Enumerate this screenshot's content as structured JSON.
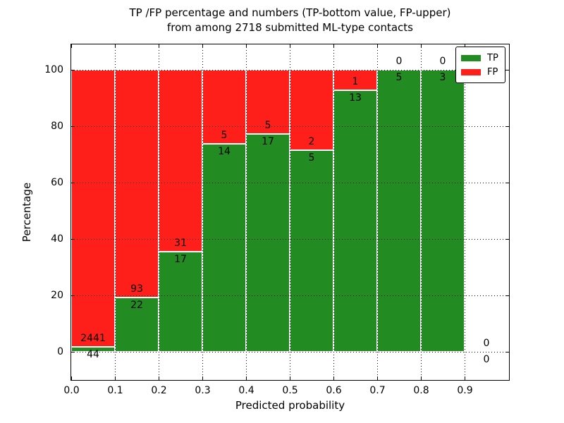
{
  "title": {
    "line1": "TP /FP percentage and numbers (TP-bottom value, FP-upper)",
    "line2": "from among 2718 submitted ML-type contacts"
  },
  "chart_data": {
    "type": "bar",
    "stacked": true,
    "normalized_to_percent": true,
    "title": "TP /FP percentage and numbers (TP-bottom value, FP-upper) from among 2718 submitted ML-type contacts",
    "xlabel": "Predicted probability",
    "ylabel": "Percentage",
    "xlim": [
      0.0,
      1.0
    ],
    "ylim": [
      -10,
      110
    ],
    "grid": true,
    "legend_position": "upper right",
    "bin_width": 0.1,
    "bin_starts": [
      0.0,
      0.1,
      0.2,
      0.3,
      0.4,
      0.5,
      0.6,
      0.7,
      0.8,
      0.9
    ],
    "x_tick_values": [
      0.0,
      0.1,
      0.2,
      0.3,
      0.4,
      0.5,
      0.6,
      0.7,
      0.8,
      0.9
    ],
    "x_tick_labels": [
      "0.0",
      "0.1",
      "0.2",
      "0.3",
      "0.4",
      "0.5",
      "0.6",
      "0.7",
      "0.8",
      "0.9"
    ],
    "y_tick_values": [
      0,
      20,
      40,
      60,
      80,
      100
    ],
    "y_tick_labels": [
      "0",
      "20",
      "40",
      "60",
      "80",
      "100"
    ],
    "series": [
      {
        "name": "TP",
        "color": "#228b22",
        "values": [
          44,
          22,
          17,
          14,
          17,
          5,
          13,
          5,
          3,
          0
        ]
      },
      {
        "name": "FP",
        "color": "#ff1f1a",
        "values": [
          2441,
          93,
          31,
          5,
          5,
          2,
          1,
          0,
          0,
          0
        ]
      }
    ],
    "tp_percent_of_bin": [
      1.8,
      19.1,
      35.4,
      73.7,
      77.3,
      71.4,
      92.9,
      100.0,
      100.0,
      0.0
    ]
  },
  "colors": {
    "tp": "#228b22",
    "fp": "#ff1f1a",
    "grid": "#000000",
    "frame": "#000000",
    "background": "#ffffff"
  }
}
